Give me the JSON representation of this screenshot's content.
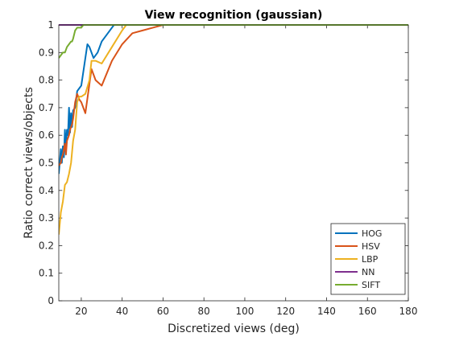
{
  "chart_data": {
    "type": "line",
    "title": "View recognition (gaussian)",
    "xlabel": "Discretized views (deg)",
    "ylabel": "Ratio correct views/objects",
    "xlim": [
      9,
      180
    ],
    "ylim": [
      0,
      1
    ],
    "xticks": [
      20,
      40,
      60,
      80,
      100,
      120,
      140,
      160,
      180
    ],
    "yticks": [
      0,
      0.1,
      0.2,
      0.3,
      0.4,
      0.5,
      0.6,
      0.7,
      0.8,
      0.9,
      1
    ],
    "ytick_labels": [
      "0",
      "0.1",
      "0.2",
      "0.3",
      "0.4",
      "0.5",
      "0.6",
      "0.7",
      "0.8",
      "0.9",
      "1"
    ],
    "grid": false,
    "legend_position": "bottom-right",
    "series": [
      {
        "name": "HOG",
        "color": "#0072BD",
        "points": [
          [
            9,
            0.46
          ],
          [
            10,
            0.55
          ],
          [
            10.5,
            0.5
          ],
          [
            11,
            0.56
          ],
          [
            11.5,
            0.52
          ],
          [
            12,
            0.62
          ],
          [
            12.5,
            0.55
          ],
          [
            13,
            0.62
          ],
          [
            13.5,
            0.6
          ],
          [
            14,
            0.7
          ],
          [
            14.5,
            0.61
          ],
          [
            15,
            0.68
          ],
          [
            15.5,
            0.63
          ],
          [
            16,
            0.69
          ],
          [
            17,
            0.7
          ],
          [
            18,
            0.76
          ],
          [
            19,
            0.77
          ],
          [
            20,
            0.78
          ],
          [
            22,
            0.88
          ],
          [
            23,
            0.93
          ],
          [
            24,
            0.92
          ],
          [
            25,
            0.9
          ],
          [
            26,
            0.88
          ],
          [
            28,
            0.9
          ],
          [
            30,
            0.94
          ],
          [
            35,
            0.99
          ],
          [
            36,
            1
          ],
          [
            180,
            1
          ]
        ]
      },
      {
        "name": "HSV",
        "color": "#D95319",
        "points": [
          [
            9,
            0.49
          ],
          [
            10,
            0.5
          ],
          [
            10.5,
            0.52
          ],
          [
            11,
            0.53
          ],
          [
            11.5,
            0.55
          ],
          [
            12,
            0.57
          ],
          [
            12.5,
            0.53
          ],
          [
            13,
            0.58
          ],
          [
            13.5,
            0.59
          ],
          [
            14,
            0.6
          ],
          [
            14.5,
            0.62
          ],
          [
            15,
            0.63
          ],
          [
            15.5,
            0.64
          ],
          [
            16,
            0.66
          ],
          [
            17,
            0.72
          ],
          [
            18,
            0.75
          ],
          [
            19,
            0.73
          ],
          [
            20,
            0.72
          ],
          [
            22,
            0.68
          ],
          [
            25,
            0.84
          ],
          [
            27,
            0.8
          ],
          [
            30,
            0.78
          ],
          [
            35,
            0.87
          ],
          [
            40,
            0.93
          ],
          [
            45,
            0.97
          ],
          [
            50,
            0.98
          ],
          [
            55,
            0.99
          ],
          [
            60,
            1
          ],
          [
            180,
            1
          ]
        ]
      },
      {
        "name": "LBP",
        "color": "#EDB120",
        "points": [
          [
            9,
            0.24
          ],
          [
            10,
            0.32
          ],
          [
            11,
            0.36
          ],
          [
            12,
            0.42
          ],
          [
            13,
            0.43
          ],
          [
            14,
            0.46
          ],
          [
            15,
            0.5
          ],
          [
            16,
            0.58
          ],
          [
            17,
            0.62
          ],
          [
            18,
            0.72
          ],
          [
            19,
            0.74
          ],
          [
            20,
            0.74
          ],
          [
            22,
            0.75
          ],
          [
            24,
            0.8
          ],
          [
            25,
            0.87
          ],
          [
            27,
            0.87
          ],
          [
            30,
            0.86
          ],
          [
            35,
            0.92
          ],
          [
            40,
            0.98
          ],
          [
            42,
            1
          ],
          [
            180,
            1
          ]
        ]
      },
      {
        "name": "NN",
        "color": "#7E2F8E",
        "points": [
          [
            9,
            1
          ],
          [
            180,
            1
          ]
        ]
      },
      {
        "name": "SIFT",
        "color": "#77AC30",
        "points": [
          [
            9,
            0.88
          ],
          [
            10,
            0.89
          ],
          [
            11,
            0.9
          ],
          [
            12,
            0.9
          ],
          [
            13,
            0.92
          ],
          [
            14,
            0.93
          ],
          [
            15,
            0.94
          ],
          [
            15.5,
            0.94
          ],
          [
            16,
            0.95
          ],
          [
            17,
            0.98
          ],
          [
            18,
            0.99
          ],
          [
            20,
            0.99
          ],
          [
            21,
            1
          ],
          [
            22,
            1
          ],
          [
            180,
            1
          ]
        ]
      }
    ]
  }
}
